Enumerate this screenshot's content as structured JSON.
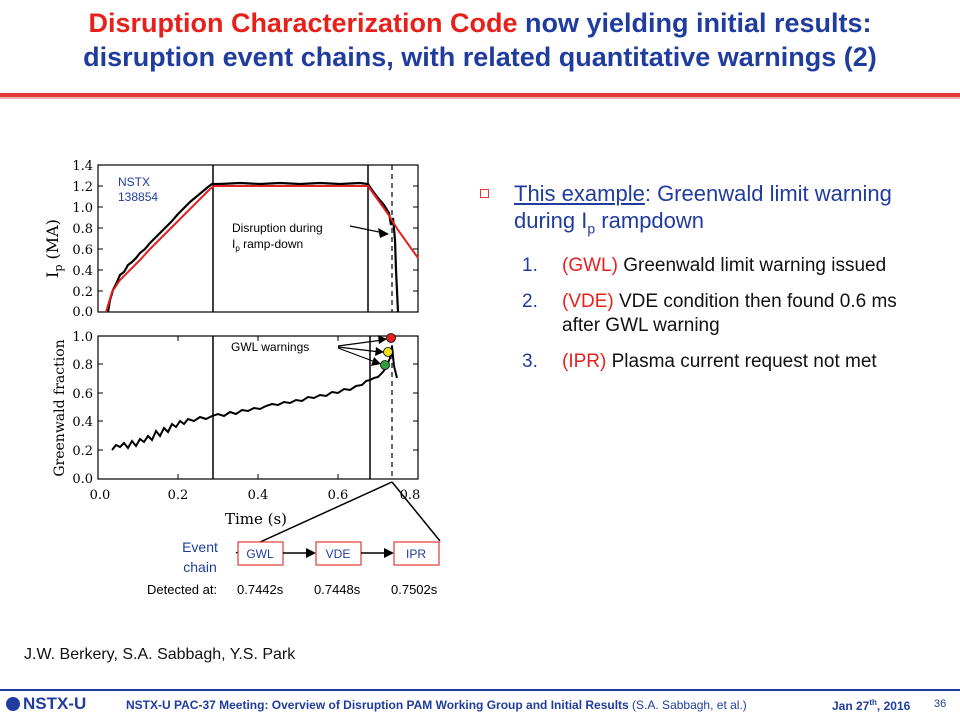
{
  "slide": {
    "title_red": "Disruption Characterization Code",
    "title_line1_rest": " now yielding initial results:",
    "title_line2": "disruption event chains, with related quantitative warnings (2)"
  },
  "figure": {
    "top_plot": {
      "ylabel": "I",
      "ylabel_sub": "p",
      "ylabel_unit": " (MA)",
      "ytick_labels": [
        "1.4",
        "1.2",
        "1.0",
        "0.8",
        "0.6",
        "0.4",
        "0.2",
        "0.0"
      ],
      "shot_label_line1": "NSTX",
      "shot_label_line2": "138854",
      "annotation_line1": "Disruption during",
      "annotation_line2_main": "I",
      "annotation_line2_sub": "p",
      "annotation_line2_rest": " ramp-down"
    },
    "bottom_plot": {
      "ylabel": "Greenwald fraction",
      "ytick_labels": [
        "1.0",
        "0.8",
        "0.6",
        "0.4",
        "0.2",
        "0.0"
      ],
      "xtick_labels": [
        "0.0",
        "0.2",
        "0.4",
        "0.6",
        "0.8"
      ],
      "xlabel": "Time (s)",
      "annotation": "GWL warnings"
    },
    "event_chain": {
      "label_line1": "Event",
      "label_line2": "chain",
      "events": [
        "GWL",
        "VDE",
        "IPR"
      ],
      "detected_label": "Detected at:",
      "times": [
        "0.7442s",
        "0.7448s",
        "0.7502s"
      ]
    },
    "warning_colors": [
      "#e81f1f",
      "#f0e019",
      "#2e9e3c"
    ]
  },
  "bullets": {
    "main_underlined": "This example",
    "main_rest": ": Greenwald limit warning during I",
    "main_sub": "p",
    "main_end": " rampdown",
    "items": [
      {
        "num": "1.",
        "abbr": "(GWL)",
        "text": " Greenwald limit warning issued"
      },
      {
        "num": "2.",
        "abbr": "(VDE)",
        "text": " VDE condition then found 0.6 ms after GWL warning"
      },
      {
        "num": "3.",
        "abbr": "(IPR)",
        "text": " Plasma current request not met"
      }
    ]
  },
  "authors": "J.W. Berkery, S.A. Sabbagh, Y.S. Park",
  "footer": {
    "logo": "NSTX-U",
    "meeting": "NSTX-U PAC-37 Meeting: Overview of Disruption PAM Working Group and Initial Results",
    "authors": " (S.A. Sabbagh, et al.)",
    "date_main": "Jan 27",
    "date_sup": "th",
    "date_year": ", 2016",
    "page": "36"
  }
}
